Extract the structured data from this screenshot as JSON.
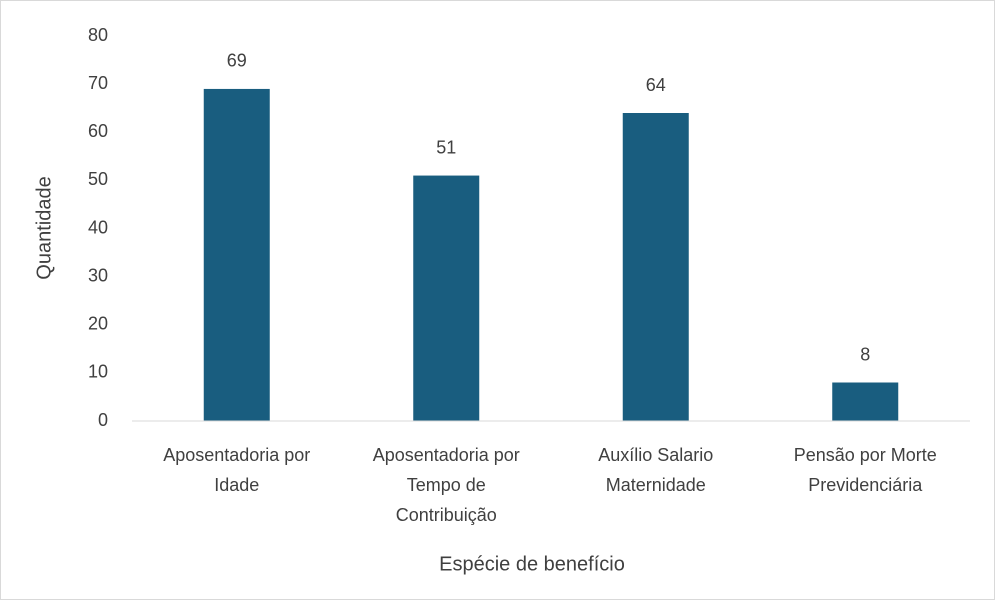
{
  "chart_data": {
    "type": "bar",
    "categories": [
      "Aposentadoria por Idade",
      "Aposentadoria por Tempo de Contribuição",
      "Auxílio Salario Maternidade",
      "Pensão por Morte Previdenciária"
    ],
    "values": [
      69,
      51,
      64,
      8
    ],
    "color": "#195d7f",
    "ylim": [
      0,
      80
    ],
    "yticks": [
      0,
      10,
      20,
      30,
      40,
      50,
      60,
      70,
      80
    ],
    "grid": false,
    "xlabel": "Espécie de benefício",
    "ylabel": "Quantidade"
  }
}
